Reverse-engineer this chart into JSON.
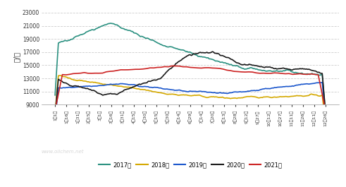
{
  "ylabel": "元/吨",
  "ylim": [
    9000,
    23500
  ],
  "yticks": [
    9000,
    11000,
    13000,
    15000,
    17000,
    19000,
    21000,
    23000
  ],
  "bg_color": "#ffffff",
  "grid_color": "#cccccc",
  "series": {
    "2017年": {
      "color": "#2a9080",
      "linewidth": 1.2
    },
    "2018年": {
      "color": "#d4a800",
      "linewidth": 1.2
    },
    "2019年": {
      "color": "#1a56cc",
      "linewidth": 1.2
    },
    "2020年": {
      "color": "#1a1a1a",
      "linewidth": 1.2
    },
    "2021年": {
      "color": "#cc2222",
      "linewidth": 1.2
    }
  },
  "xtick_labels": [
    "1月1日",
    "1月16日",
    "1月31日",
    "2月15日",
    "3月1日",
    "3月16日",
    "3月31日",
    "4月15日",
    "4月30日",
    "5月15日",
    "5月30日",
    "6月14日",
    "6月29日",
    "7月14日",
    "7月20日",
    "8月13日",
    "8月28日",
    "9月12日",
    "9月27日",
    "10月12日",
    "10月27日",
    "11月11日",
    "11月26日",
    "12月11日",
    "12月26日"
  ],
  "legend_entries": [
    "2017年",
    "2018年",
    "2019年",
    "2020年",
    "2021年"
  ],
  "watermark": "www.oilchem.net"
}
